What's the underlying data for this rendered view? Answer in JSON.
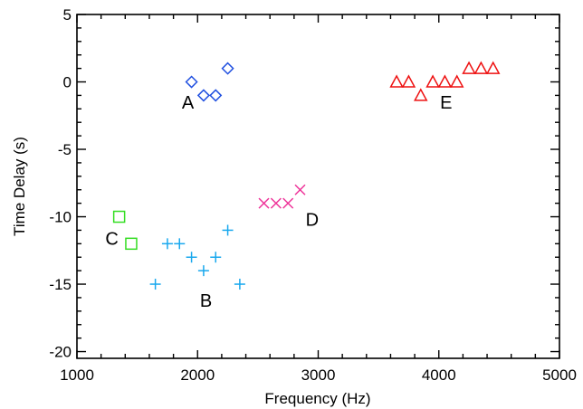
{
  "chart_data": {
    "type": "scatter",
    "xlabel": "Frequency (Hz)",
    "ylabel": "Time Delay (s)",
    "xlim": [
      1000,
      5000
    ],
    "ylim": [
      -20.5,
      5
    ],
    "x_ticks": [
      1000,
      2000,
      3000,
      4000,
      5000
    ],
    "y_ticks": [
      5,
      0,
      -5,
      -10,
      -15,
      -20
    ],
    "grid": false,
    "series": [
      {
        "label": "A",
        "marker": "diamond",
        "color": "#1f4fe0",
        "points": [
          [
            1950,
            0
          ],
          [
            2050,
            -1
          ],
          [
            2150,
            -1
          ],
          [
            2250,
            1
          ]
        ]
      },
      {
        "label": "B",
        "marker": "plus",
        "color": "#18a8ee",
        "points": [
          [
            1650,
            -15
          ],
          [
            1750,
            -12
          ],
          [
            1850,
            -12
          ],
          [
            1950,
            -13
          ],
          [
            2050,
            -14
          ],
          [
            2150,
            -13
          ],
          [
            2250,
            -11
          ],
          [
            2350,
            -15
          ]
        ]
      },
      {
        "label": "C",
        "marker": "square",
        "color": "#33dd22",
        "points": [
          [
            1350,
            -10
          ],
          [
            1450,
            -12
          ]
        ]
      },
      {
        "label": "D",
        "marker": "x",
        "color": "#ee3399",
        "points": [
          [
            2550,
            -9
          ],
          [
            2650,
            -9
          ],
          [
            2750,
            -9
          ],
          [
            2850,
            -8
          ]
        ]
      },
      {
        "label": "E",
        "marker": "triangle",
        "color": "#ee1111",
        "points": [
          [
            3650,
            0
          ],
          [
            3750,
            0
          ],
          [
            3850,
            -1
          ],
          [
            3950,
            0
          ],
          [
            4050,
            0
          ],
          [
            4150,
            0
          ],
          [
            4250,
            1
          ],
          [
            4350,
            1
          ],
          [
            4450,
            1
          ]
        ]
      }
    ],
    "annotations": [
      {
        "text": "A",
        "x": 1920,
        "y": -1.5
      },
      {
        "text": "B",
        "x": 2070,
        "y": -16.2
      },
      {
        "text": "C",
        "x": 1290,
        "y": -11.6
      },
      {
        "text": "D",
        "x": 2950,
        "y": -10.2
      },
      {
        "text": "E",
        "x": 4060,
        "y": -1.5
      }
    ]
  }
}
